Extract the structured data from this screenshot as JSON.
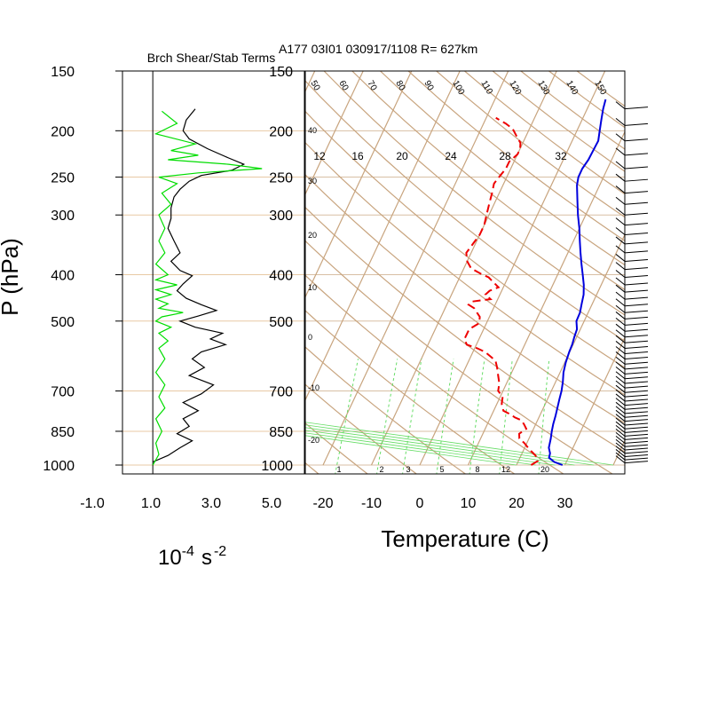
{
  "chart_data": [
    {
      "type": "line",
      "panel": "left",
      "title": "Brch Shear/Stab Terms",
      "ylabel": "P (hPa)",
      "units_base": "10",
      "units_exp": "-4",
      "units_s": "s",
      "units_exp2": "-2",
      "yscale": "log",
      "xlim": [
        -1.0,
        5.0
      ],
      "ylim": [
        1000,
        150
      ],
      "xticks": [
        "-1.0",
        "1.0",
        "3.0",
        "5.0"
      ],
      "xtick_values": [
        -1,
        1,
        3,
        5
      ],
      "yticks": [
        "150",
        "200",
        "250",
        "300",
        "400",
        "500",
        "700",
        "850",
        "1000"
      ],
      "ytick_values": [
        150,
        200,
        250,
        300,
        400,
        500,
        700,
        850,
        1000
      ],
      "colors": {
        "shear": "#000000",
        "stab": "#00dd00",
        "grid": "#e8c9a4"
      },
      "series": [
        {
          "color_key": "shear",
          "points": [
            [
              1.4,
              180
            ],
            [
              1.1,
              190
            ],
            [
              1.0,
              200
            ],
            [
              1.2,
              208
            ],
            [
              1.8,
              218
            ],
            [
              2.5,
              228
            ],
            [
              3.0,
              235
            ],
            [
              2.6,
              242
            ],
            [
              1.6,
              248
            ],
            [
              1.2,
              255
            ],
            [
              0.9,
              265
            ],
            [
              0.7,
              275
            ],
            [
              0.6,
              290
            ],
            [
              0.6,
              305
            ],
            [
              0.5,
              320
            ],
            [
              0.7,
              340
            ],
            [
              0.9,
              360
            ],
            [
              0.6,
              375
            ],
            [
              0.9,
              392
            ],
            [
              1.3,
              402
            ],
            [
              1.0,
              418
            ],
            [
              0.8,
              432
            ],
            [
              1.1,
              448
            ],
            [
              1.6,
              462
            ],
            [
              2.1,
              475
            ],
            [
              1.5,
              488
            ],
            [
              0.9,
              500
            ],
            [
              1.4,
              515
            ],
            [
              2.3,
              530
            ],
            [
              1.9,
              545
            ],
            [
              2.4,
              560
            ],
            [
              1.6,
              580
            ],
            [
              1.3,
              600
            ],
            [
              1.7,
              625
            ],
            [
              1.2,
              650
            ],
            [
              2.0,
              680
            ],
            [
              1.6,
              710
            ],
            [
              1.0,
              740
            ],
            [
              1.5,
              770
            ],
            [
              1.0,
              800
            ],
            [
              1.2,
              830
            ],
            [
              0.8,
              860
            ],
            [
              1.3,
              890
            ],
            [
              0.9,
              920
            ],
            [
              0.5,
              955
            ],
            [
              0.0,
              985
            ]
          ]
        },
        {
          "color_key": "stab",
          "points": [
            [
              0.3,
              182
            ],
            [
              0.8,
              193
            ],
            [
              0.1,
              203
            ],
            [
              1.4,
              213
            ],
            [
              0.6,
              220
            ],
            [
              1.5,
              225
            ],
            [
              0.5,
              230
            ],
            [
              2.5,
              235
            ],
            [
              3.6,
              240
            ],
            [
              1.5,
              245
            ],
            [
              0.2,
              250
            ],
            [
              0.8,
              258
            ],
            [
              0.3,
              270
            ],
            [
              0.6,
              285
            ],
            [
              0.2,
              300
            ],
            [
              0.4,
              320
            ],
            [
              0.2,
              340
            ],
            [
              0.4,
              360
            ],
            [
              0.1,
              380
            ],
            [
              0.5,
              400
            ],
            [
              0.1,
              410
            ],
            [
              0.8,
              420
            ],
            [
              0.1,
              430
            ],
            [
              0.6,
              440
            ],
            [
              0.1,
              450
            ],
            [
              0.5,
              460
            ],
            [
              0.2,
              470
            ],
            [
              1.0,
              480
            ],
            [
              0.3,
              490
            ],
            [
              0.1,
              500
            ],
            [
              0.6,
              515
            ],
            [
              0.2,
              530
            ],
            [
              0.5,
              550
            ],
            [
              0.2,
              570
            ],
            [
              0.4,
              600
            ],
            [
              0.1,
              640
            ],
            [
              0.4,
              680
            ],
            [
              0.2,
              720
            ],
            [
              0.4,
              760
            ],
            [
              0.1,
              800
            ],
            [
              0.3,
              850
            ],
            [
              0.1,
              900
            ],
            [
              0.2,
              950
            ],
            [
              0.0,
              1000
            ]
          ]
        }
      ]
    },
    {
      "type": "line",
      "panel": "right",
      "title": "A177 03I01 030917/1108 R= 627km",
      "xlabel": "Temperature (C)",
      "yscale": "log",
      "xlim": [
        -23,
        30
      ],
      "ylim": [
        1000,
        150
      ],
      "xticks": [
        "-20",
        "-10",
        "0",
        "10",
        "20",
        "30"
      ],
      "xtick_values": [
        -20,
        -10,
        0,
        10,
        20,
        30
      ],
      "yticks": [
        "150",
        "200",
        "250",
        "300",
        "400",
        "500",
        "700",
        "850",
        "1000"
      ],
      "ytick_values": [
        150,
        200,
        250,
        300,
        400,
        500,
        700,
        850,
        1000
      ],
      "isotherm_labels": [
        "-20",
        "-10",
        "0",
        "10",
        "20",
        "30",
        "40"
      ],
      "mixing_ratio_labels": [
        "12",
        "16",
        "20",
        "24",
        "28",
        "32"
      ],
      "mixing_ratio_bottom_labels": [
        "1",
        "2",
        "3",
        "5",
        "8",
        "12",
        "20"
      ],
      "theta_labels": [
        "50",
        "60",
        "70",
        "80",
        "90",
        "100",
        "110",
        "120",
        "130",
        "140",
        "150"
      ],
      "colors": {
        "temperature": "#0000dd",
        "dewpoint": "#ee0000",
        "skew_grid": "#c8a47e",
        "mixing": "#66dd66",
        "wind": "#000000"
      },
      "series": [
        {
          "color_key": "temperature",
          "points": [
            [
              29.5,
              1000
            ],
            [
              27.5,
              985
            ],
            [
              26,
              965
            ],
            [
              25.8,
              945
            ],
            [
              25,
              920
            ],
            [
              24.5,
              880
            ],
            [
              24,
              850
            ],
            [
              23.6,
              820
            ],
            [
              23.3,
              790
            ],
            [
              22.9,
              760
            ],
            [
              22.5,
              730
            ],
            [
              22.1,
              700
            ],
            [
              21.5,
              670
            ],
            [
              20.7,
              640
            ],
            [
              20.2,
              610
            ],
            [
              19.9,
              580
            ],
            [
              19.8,
              560
            ],
            [
              19.5,
              540
            ],
            [
              19.3,
              520
            ],
            [
              18.4,
              500
            ],
            [
              18.3,
              480
            ],
            [
              17.8,
              460
            ],
            [
              17.3,
              440
            ],
            [
              16.4,
              420
            ],
            [
              15.2,
              400
            ],
            [
              13.9,
              380
            ],
            [
              12.6,
              360
            ],
            [
              11.3,
              340
            ],
            [
              10,
              320
            ],
            [
              8.4,
              300
            ],
            [
              6.9,
              280
            ],
            [
              5.3,
              260
            ],
            [
              4.8,
              250
            ],
            [
              4.8,
              240
            ],
            [
              5.2,
              230
            ],
            [
              5.3,
              220
            ],
            [
              5.4,
              210
            ],
            [
              4.7,
              200
            ],
            [
              4,
              190
            ],
            [
              3.3,
              180
            ],
            [
              2.9,
              172
            ]
          ]
        },
        {
          "color_key": "dewpoint",
          "points": [
            [
              23,
              1000
            ],
            [
              24,
              980
            ],
            [
              23,
              955
            ],
            [
              22,
              940
            ],
            [
              21,
              925
            ],
            [
              19.5,
              900
            ],
            [
              18,
              880
            ],
            [
              17.5,
              860
            ],
            [
              18.5,
              840
            ],
            [
              17.5,
              820
            ],
            [
              16.5,
              805
            ],
            [
              15,
              795
            ],
            [
              14,
              785
            ],
            [
              12,
              770
            ],
            [
              11,
              745
            ],
            [
              10.5,
              720
            ],
            [
              9,
              700
            ],
            [
              8.5,
              675
            ],
            [
              7.5,
              650
            ],
            [
              6.5,
              625
            ],
            [
              5.5,
              605
            ],
            [
              2.5,
              580
            ],
            [
              0.5,
              570
            ],
            [
              -2,
              560
            ],
            [
              -3,
              545
            ],
            [
              -3,
              520
            ],
            [
              -1.5,
              505
            ],
            [
              -2,
              490
            ],
            [
              -3,
              480
            ],
            [
              -4,
              470
            ],
            [
              -5.5,
              462
            ],
            [
              -5,
              455
            ],
            [
              -1.5,
              450
            ],
            [
              -3,
              440
            ],
            [
              -2.5,
              432
            ],
            [
              -1,
              425
            ],
            [
              -2.5,
              415
            ],
            [
              -4,
              405
            ],
            [
              -6,
              398
            ],
            [
              -8.5,
              388
            ],
            [
              -10,
              375
            ],
            [
              -11,
              360
            ],
            [
              -10.5,
              345
            ],
            [
              -10,
              330
            ],
            [
              -10,
              315
            ],
            [
              -10.5,
              300
            ],
            [
              -11,
              285
            ],
            [
              -11.5,
              270
            ],
            [
              -12,
              258
            ],
            [
              -11.5,
              248
            ],
            [
              -11,
              240
            ],
            [
              -11,
              232
            ],
            [
              -10,
              224
            ],
            [
              -10,
              218
            ],
            [
              -10.5,
              212
            ],
            [
              -12,
              205
            ],
            [
              -13.5,
              198
            ],
            [
              -15.5,
              193
            ],
            [
              -17,
              190
            ],
            [
              -18,
              188
            ]
          ]
        }
      ]
    }
  ]
}
